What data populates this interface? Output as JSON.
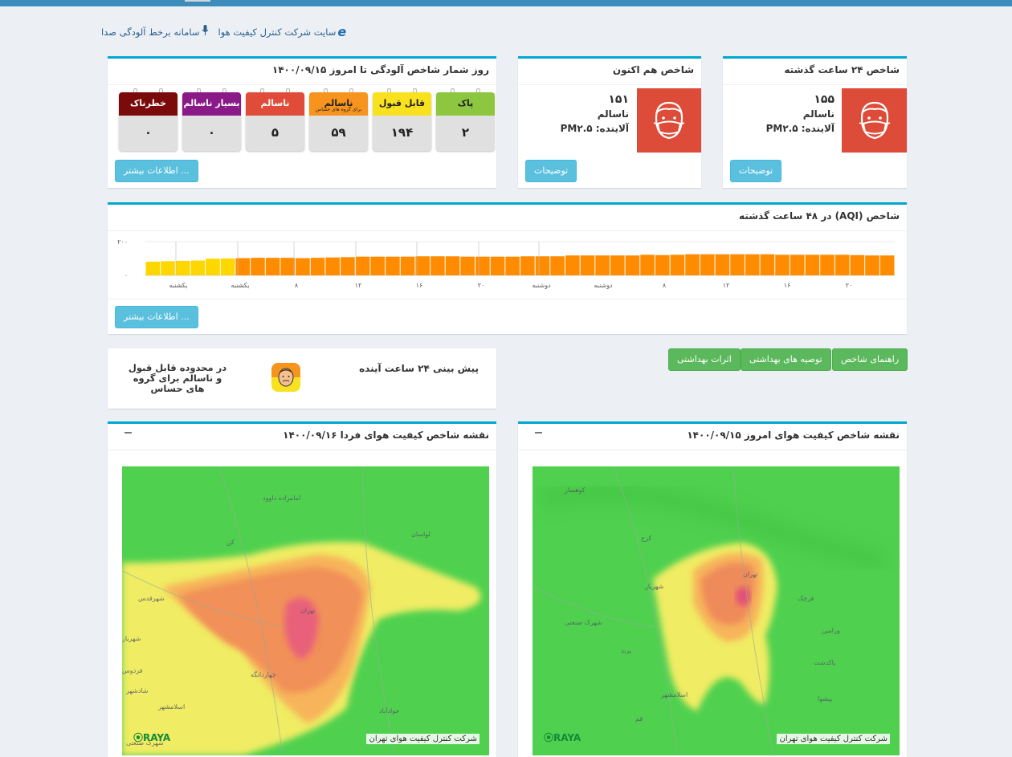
{
  "topnav": {
    "accent": "#3c8dbc"
  },
  "links": [
    {
      "label": "سایت شرکت کنترل کیفیت هوا",
      "icon": "ie-icon"
    },
    {
      "label": "سامانه برخط آلودگی صدا",
      "icon": "microphone-icon"
    }
  ],
  "aqi24": {
    "title": "شاخص ۲۴ ساعت گذشته",
    "value": "۱۵۵",
    "status": "ناسالم",
    "pollutant": "آلاینده: PM۲.۵",
    "button": "توضیحات",
    "color": "#dd4b39"
  },
  "aqinow": {
    "title": "شاخص هم اکنون",
    "value": "۱۵۱",
    "status": "ناسالم",
    "pollutant": "آلاینده: PM۲.۵",
    "button": "توضیحات",
    "color": "#dd4b39"
  },
  "counter": {
    "title": "روز شمار شاخص آلودگی تا امروز ۱۴۰۰/۰۹/۱۵",
    "button": "اطلاعات بیشتر ...",
    "days": [
      {
        "label": "پاک",
        "value": "۲",
        "color": "#8dc63f",
        "text": "#222"
      },
      {
        "label": "قابل قبول",
        "value": "۱۹۴",
        "color": "#f8e11e",
        "text": "#222"
      },
      {
        "label": "ناسالم",
        "sub": "برای گروه های حساس",
        "value": "۵۹",
        "color": "#f7941d",
        "text": "#222"
      },
      {
        "label": "ناسالم",
        "value": "۵",
        "color": "#e04b3a",
        "text": "#fff"
      },
      {
        "label": "بسیار ناسالم",
        "value": "۰",
        "color": "#8b1a89",
        "text": "#fff"
      },
      {
        "label": "خطرناک",
        "value": "۰",
        "color": "#7b0a0a",
        "text": "#fff"
      }
    ]
  },
  "chart": {
    "title": "شاخص (AQI) در ۴۸ ساعت گذشته",
    "button": "اطلاعات بیشتر ...",
    "chart_data": {
      "type": "bar",
      "y_ticks": [
        "۲۰۰",
        "۰"
      ],
      "ylim": [
        0,
        200
      ],
      "x_ticks": [
        "یکشنبه",
        "یکشنبه",
        "۸",
        "۱۲",
        "۱۶",
        "۲۰",
        "دوشنبه",
        "دوشنبه",
        "۸",
        "۱۲",
        "۱۶",
        "۲۰"
      ],
      "values": [
        81,
        84,
        86,
        88,
        99,
        100,
        102,
        104,
        104,
        104,
        102,
        104,
        106,
        108,
        111,
        111,
        111,
        111,
        113,
        113,
        113,
        111,
        111,
        111,
        111,
        113,
        113,
        113,
        118,
        118,
        118,
        118,
        118,
        122,
        120,
        122,
        125,
        125,
        125,
        125,
        125,
        125,
        122,
        122,
        122,
        122,
        122,
        120,
        118,
        118
      ],
      "color_bands": [
        {
          "max": 100,
          "color": "#ffd700"
        },
        {
          "max": 150,
          "color": "#ff8c00"
        },
        {
          "max": 200,
          "color": "#ff0000"
        }
      ]
    }
  },
  "guide_buttons": [
    "راهنمای شاخص",
    "توصیه های بهداشتی",
    "اثرات بهداشتی"
  ],
  "forecast": {
    "title": "پیش بینی ۲۴ ساعت آینده",
    "text": "در محدوده قابل قبول و ناسالم برای گروه های حساس"
  },
  "map_today": {
    "title": "نقشه شاخص کیفیت هوای امروز ۱۴۰۰/۰۹/۱۵",
    "credit": "شرکت کنترل کیفیت هوای تهران",
    "brand": "RAYA",
    "labels": [
      "کوهسار",
      "تهران",
      "کرج",
      "شهریار",
      "پرند",
      "قم",
      "ورامین",
      "پاکدشت",
      "شهرک صنعتی",
      "اسلامشهر",
      "پیشوا",
      "قرچک"
    ]
  },
  "map_tomorrow": {
    "title": "نقشه شاخص کیفیت هوای فردا ۱۴۰۰/۰۹/۱۶",
    "credit": "شرکت کنترل کیفیت هوای تهران",
    "brand": "RAYA",
    "labels": [
      "تهران",
      "شهرقدس",
      "اسلامشهر",
      "فردوس",
      "شهریار",
      "لواسان",
      "کن",
      "امامزاده داوود",
      "چهاردانگه",
      "جوادآباد",
      "شادشهر",
      "شهرک صنعتی"
    ]
  }
}
